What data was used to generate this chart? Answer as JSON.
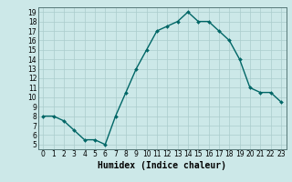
{
  "x": [
    0,
    1,
    2,
    3,
    4,
    5,
    6,
    7,
    8,
    9,
    10,
    11,
    12,
    13,
    14,
    15,
    16,
    17,
    18,
    19,
    20,
    21,
    22,
    23
  ],
  "y": [
    8.0,
    8.0,
    7.5,
    6.5,
    5.5,
    5.5,
    5.0,
    8.0,
    10.5,
    13.0,
    15.0,
    17.0,
    17.5,
    18.0,
    19.0,
    18.0,
    18.0,
    17.0,
    16.0,
    14.0,
    11.0,
    10.5,
    10.5,
    9.5
  ],
  "line_color": "#006666",
  "marker": "D",
  "marker_size": 2.0,
  "bg_color": "#cce8e8",
  "grid_color": "#aacccc",
  "xlabel": "Humidex (Indice chaleur)",
  "ylabel": "",
  "xlim": [
    -0.5,
    23.5
  ],
  "ylim": [
    4.5,
    19.5
  ],
  "yticks": [
    5,
    6,
    7,
    8,
    9,
    10,
    11,
    12,
    13,
    14,
    15,
    16,
    17,
    18,
    19
  ],
  "xticks": [
    0,
    1,
    2,
    3,
    4,
    5,
    6,
    7,
    8,
    9,
    10,
    11,
    12,
    13,
    14,
    15,
    16,
    17,
    18,
    19,
    20,
    21,
    22,
    23
  ],
  "tick_fontsize": 5.5,
  "xlabel_fontsize": 7.0,
  "line_width": 1.0
}
